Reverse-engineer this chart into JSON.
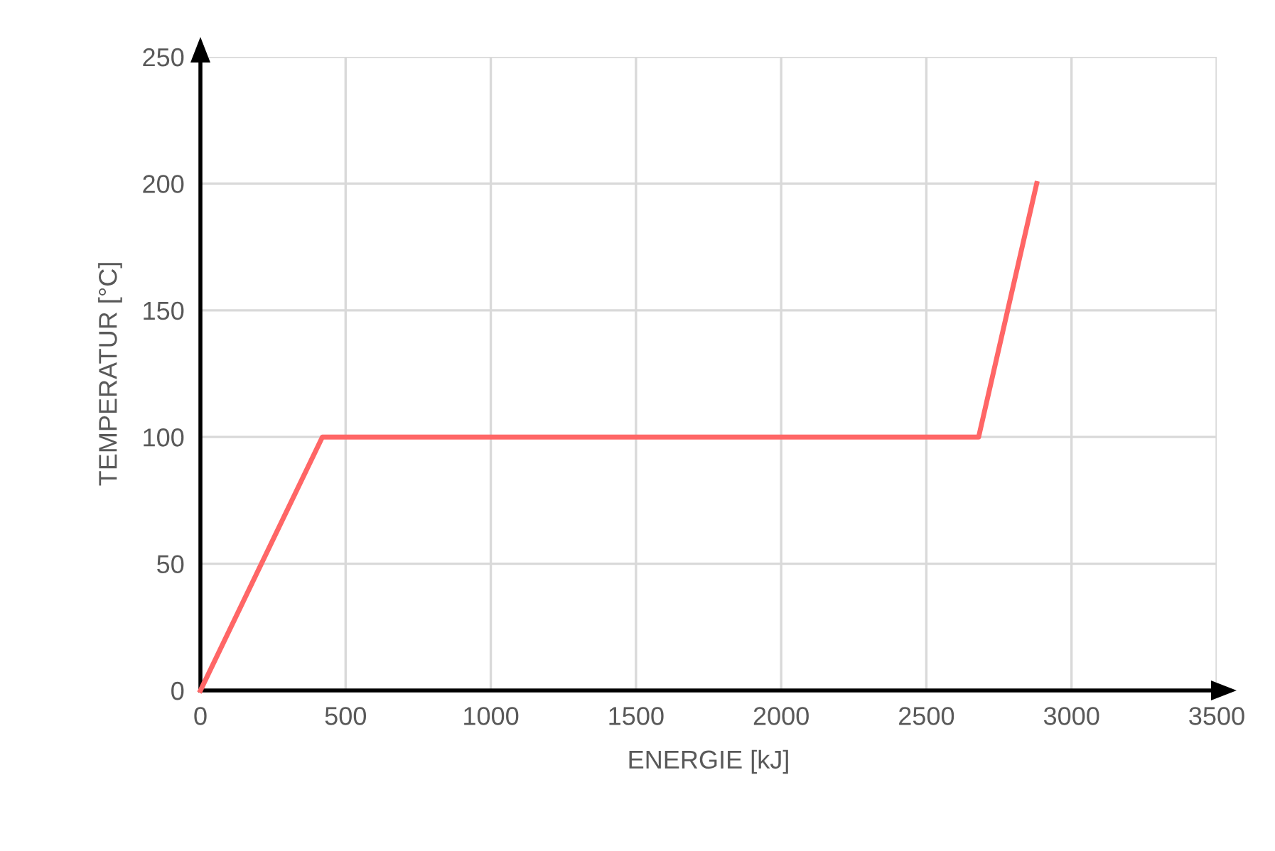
{
  "chart_data": {
    "type": "line",
    "xlabel": "ENERGIE [kJ]",
    "ylabel": "TEMPERATUR [°C]",
    "x": [
      0,
      420,
      2680,
      2880
    ],
    "series": [
      {
        "color": "#ff6666",
        "values": [
          0,
          100,
          100,
          200
        ]
      }
    ],
    "xlim": [
      0,
      3500
    ],
    "xticks": [
      0,
      500,
      1000,
      1500,
      2000,
      2500,
      3000,
      3500
    ],
    "ylim": [
      0,
      250
    ],
    "yticks": [
      0,
      50,
      100,
      150,
      200,
      250
    ],
    "grid": true,
    "legend": false,
    "marker": "none",
    "line_style": "solid"
  }
}
